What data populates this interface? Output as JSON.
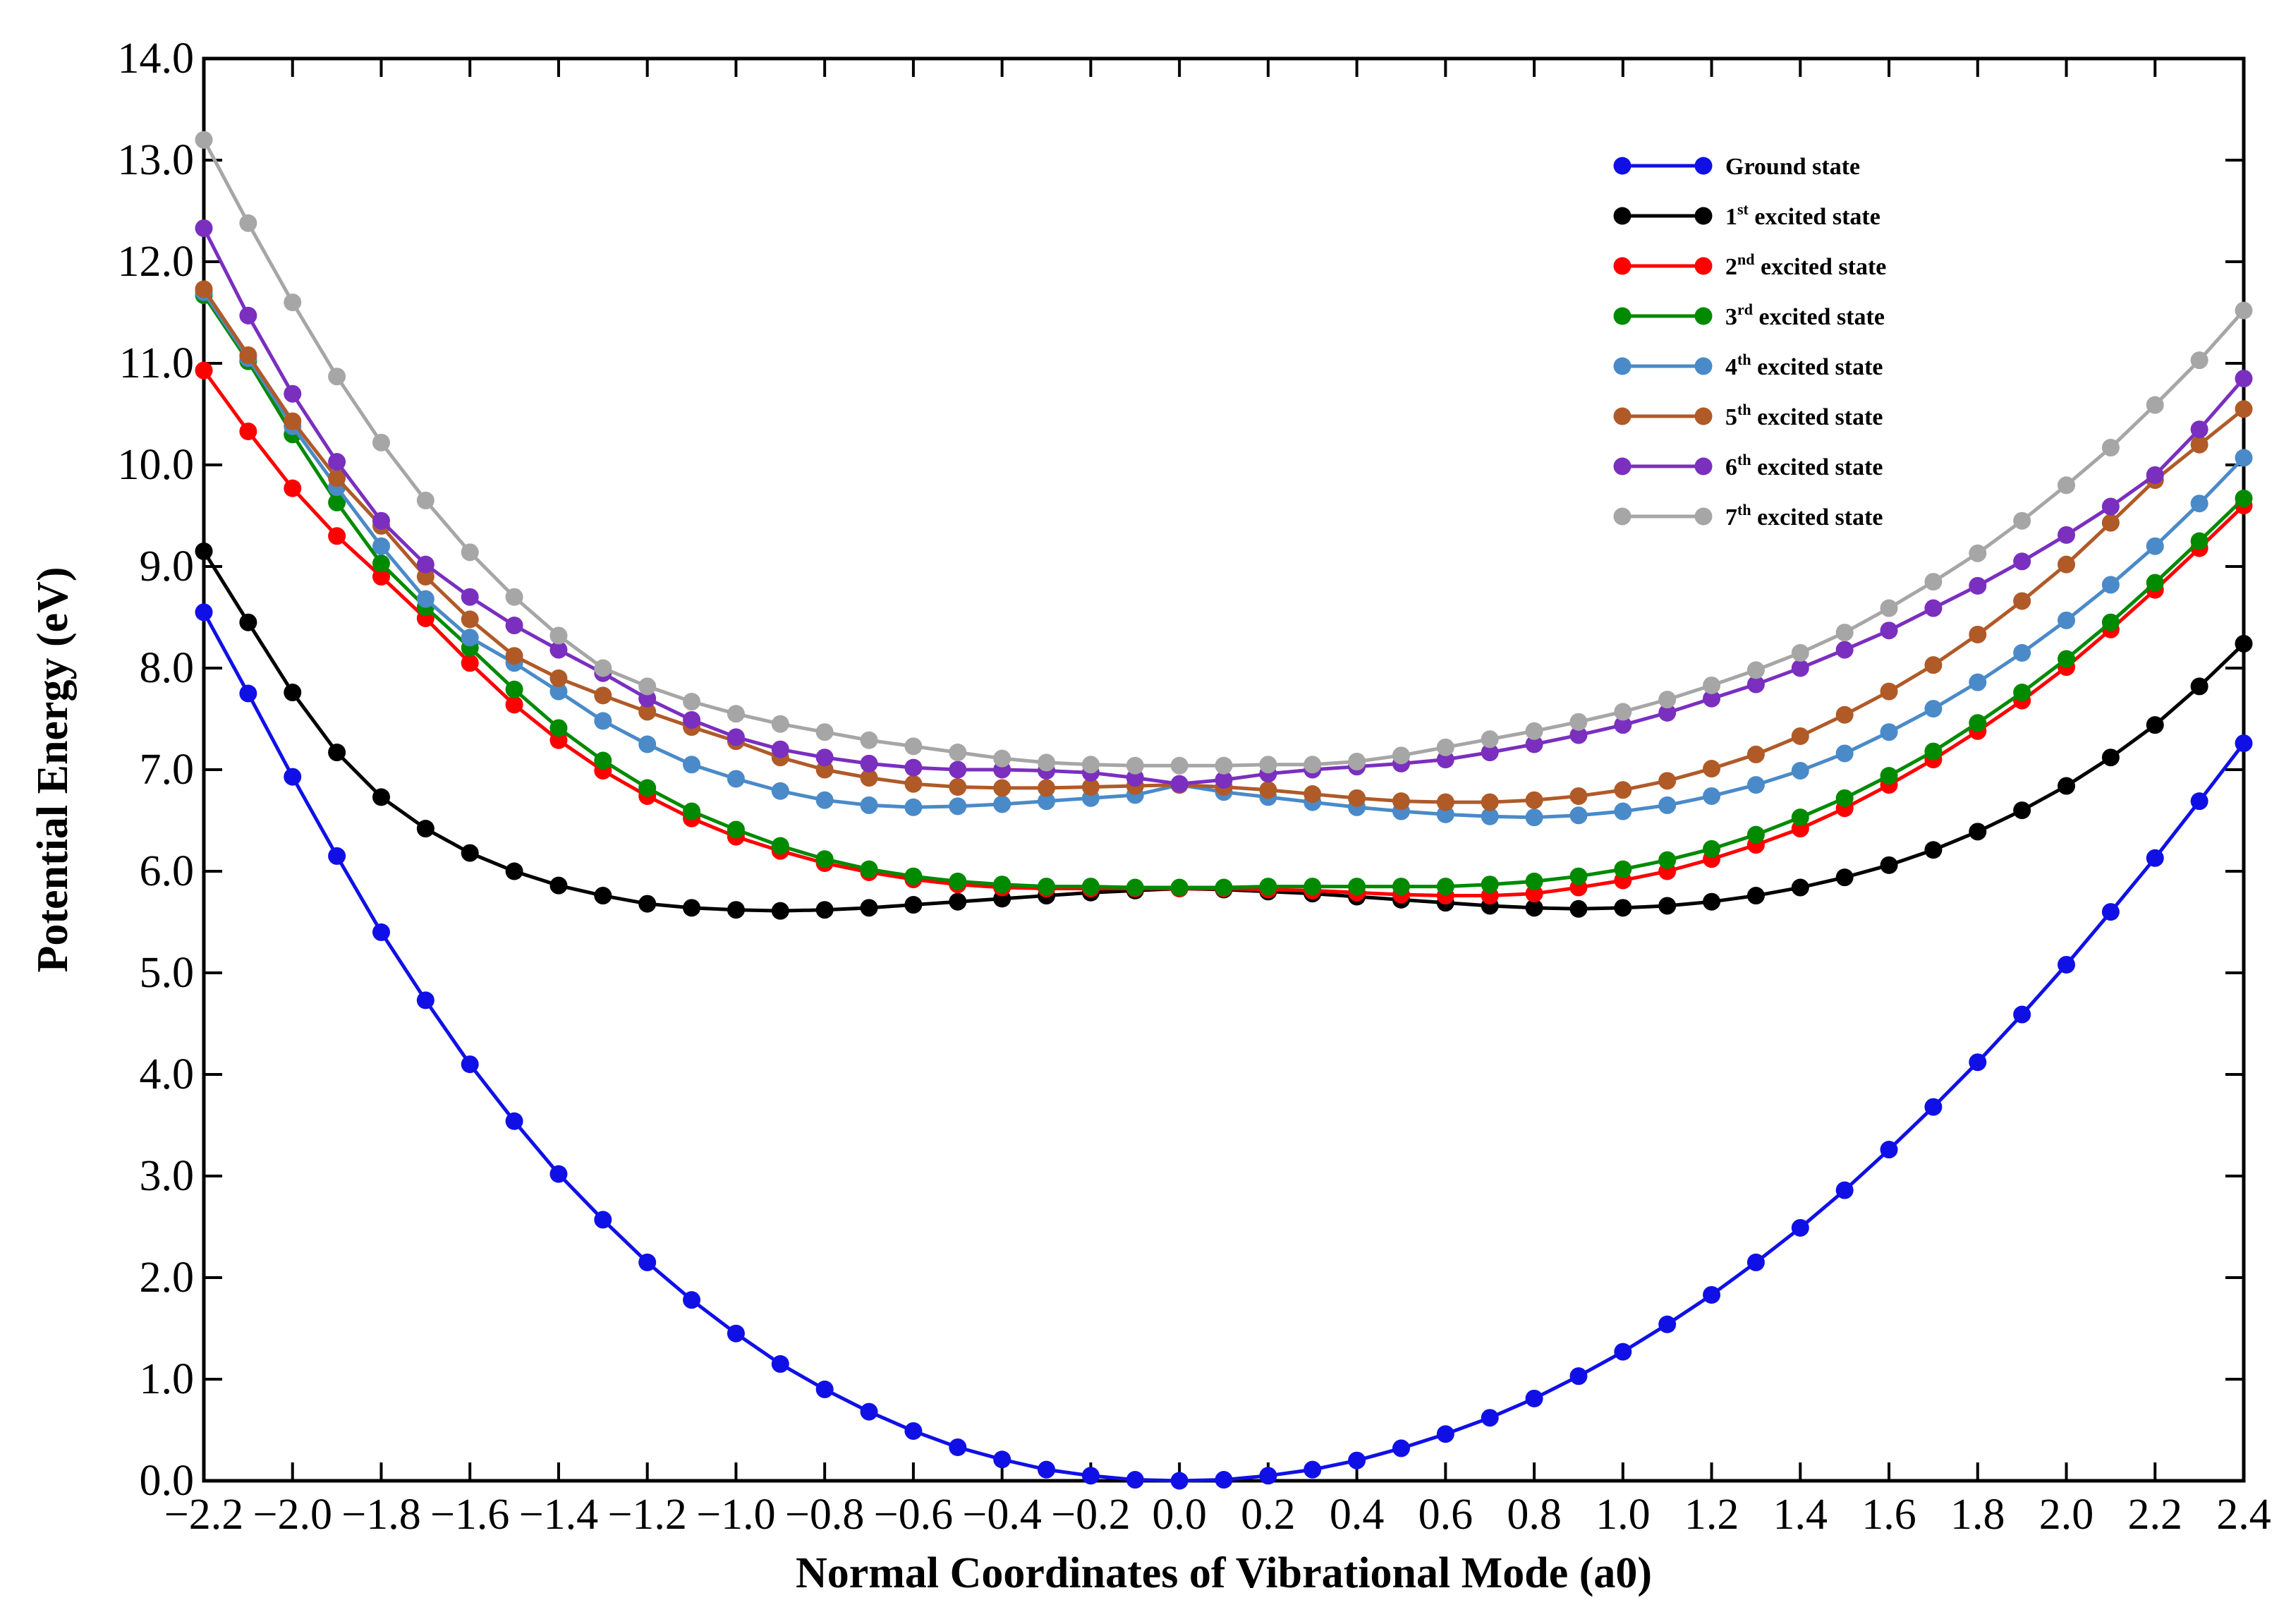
{
  "chart_data": {
    "type": "line",
    "x_label": "Normal Coordinates of Vibrational Mode (a0)",
    "y_label": "Potential Energy (eV)",
    "x": [
      -2.2,
      -2.1,
      -2.0,
      -1.9,
      -1.8,
      -1.7,
      -1.6,
      -1.5,
      -1.4,
      -1.3,
      -1.2,
      -1.1,
      -1.0,
      -0.9,
      -0.8,
      -0.7,
      -0.6,
      -0.5,
      -0.4,
      -0.3,
      -0.2,
      -0.1,
      0,
      0.1,
      0.2,
      0.3,
      0.4,
      0.5,
      0.6,
      0.7,
      0.8,
      0.9,
      1.0,
      1.1,
      1.2,
      1.3,
      1.4,
      1.5,
      1.6,
      1.7,
      1.8,
      1.9,
      2.0,
      2.1,
      2.2,
      2.3,
      2.4
    ],
    "series": [
      {
        "name": "Ground state",
        "color": "#1010e6",
        "values": [
          8.55,
          7.75,
          6.93,
          6.15,
          5.4,
          4.73,
          4.1,
          3.54,
          3.02,
          2.57,
          2.15,
          1.78,
          1.45,
          1.15,
          0.9,
          0.68,
          0.49,
          0.33,
          0.21,
          0.11,
          0.05,
          0.01,
          0.0,
          0.01,
          0.05,
          0.11,
          0.2,
          0.32,
          0.46,
          0.62,
          0.81,
          1.03,
          1.27,
          1.54,
          1.83,
          2.15,
          2.49,
          2.86,
          3.26,
          3.68,
          4.12,
          4.59,
          5.08,
          5.6,
          6.13,
          6.69,
          7.26
        ]
      },
      {
        "name": "1st excited state",
        "color": "#000000",
        "values": [
          9.15,
          8.45,
          7.76,
          7.17,
          6.73,
          6.42,
          6.18,
          6.0,
          5.86,
          5.76,
          5.68,
          5.64,
          5.62,
          5.61,
          5.62,
          5.64,
          5.67,
          5.7,
          5.73,
          5.76,
          5.79,
          5.81,
          5.83,
          5.82,
          5.8,
          5.78,
          5.75,
          5.72,
          5.69,
          5.66,
          5.64,
          5.63,
          5.64,
          5.66,
          5.7,
          5.76,
          5.84,
          5.94,
          6.06,
          6.21,
          6.39,
          6.6,
          6.84,
          7.12,
          7.44,
          7.82,
          8.24
        ]
      },
      {
        "name": "2nd excited state",
        "color": "#ff0000",
        "values": [
          10.93,
          10.33,
          9.77,
          9.3,
          8.9,
          8.49,
          8.05,
          7.64,
          7.29,
          6.99,
          6.74,
          6.52,
          6.34,
          6.2,
          6.08,
          5.99,
          5.92,
          5.87,
          5.84,
          5.83,
          5.83,
          5.83,
          5.83,
          5.83,
          5.82,
          5.81,
          5.79,
          5.77,
          5.76,
          5.76,
          5.78,
          5.84,
          5.91,
          6.0,
          6.12,
          6.26,
          6.42,
          6.62,
          6.85,
          7.1,
          7.38,
          7.68,
          8.01,
          8.38,
          8.77,
          9.18,
          9.6
        ]
      },
      {
        "name": "3rd excited state",
        "color": "#008a00",
        "values": [
          11.67,
          11.02,
          10.3,
          9.63,
          9.03,
          8.6,
          8.2,
          7.79,
          7.41,
          7.09,
          6.82,
          6.59,
          6.41,
          6.25,
          6.12,
          6.02,
          5.95,
          5.9,
          5.87,
          5.85,
          5.85,
          5.84,
          5.84,
          5.84,
          5.85,
          5.85,
          5.85,
          5.85,
          5.85,
          5.87,
          5.9,
          5.95,
          6.02,
          6.11,
          6.22,
          6.36,
          6.53,
          6.72,
          6.94,
          7.18,
          7.46,
          7.76,
          8.09,
          8.45,
          8.84,
          9.25,
          9.67
        ]
      },
      {
        "name": "4th excited state",
        "color": "#4a8ac8",
        "values": [
          11.7,
          11.05,
          10.38,
          9.78,
          9.2,
          8.68,
          8.3,
          8.05,
          7.77,
          7.48,
          7.25,
          7.05,
          6.91,
          6.79,
          6.7,
          6.65,
          6.63,
          6.64,
          6.66,
          6.69,
          6.72,
          6.75,
          6.85,
          6.78,
          6.73,
          6.68,
          6.63,
          6.59,
          6.56,
          6.54,
          6.53,
          6.55,
          6.59,
          6.65,
          6.74,
          6.85,
          6.99,
          7.16,
          7.37,
          7.6,
          7.86,
          8.15,
          8.47,
          8.82,
          9.2,
          9.62,
          10.07
        ]
      },
      {
        "name": "5th excited state",
        "color": "#b05a28",
        "values": [
          11.73,
          11.08,
          10.43,
          9.87,
          9.4,
          8.9,
          8.48,
          8.12,
          7.9,
          7.73,
          7.57,
          7.42,
          7.28,
          7.12,
          7.0,
          6.92,
          6.86,
          6.83,
          6.82,
          6.82,
          6.83,
          6.84,
          6.85,
          6.83,
          6.8,
          6.76,
          6.72,
          6.69,
          6.68,
          6.68,
          6.7,
          6.74,
          6.8,
          6.89,
          7.01,
          7.15,
          7.33,
          7.54,
          7.77,
          8.03,
          8.33,
          8.66,
          9.02,
          9.43,
          9.85,
          10.2,
          10.55
        ]
      },
      {
        "name": "6th excited state",
        "color": "#7a2fbf",
        "values": [
          12.33,
          11.47,
          10.7,
          10.03,
          9.45,
          9.02,
          8.7,
          8.42,
          8.18,
          7.95,
          7.7,
          7.49,
          7.32,
          7.2,
          7.12,
          7.06,
          7.02,
          7.0,
          7.0,
          6.99,
          6.97,
          6.92,
          6.86,
          6.9,
          6.96,
          7.0,
          7.03,
          7.06,
          7.1,
          7.17,
          7.25,
          7.34,
          7.44,
          7.56,
          7.7,
          7.84,
          8.0,
          8.18,
          8.37,
          8.59,
          8.81,
          9.05,
          9.31,
          9.59,
          9.9,
          10.35,
          10.85
        ]
      },
      {
        "name": "7th excited state",
        "color": "#a6a6a6",
        "values": [
          13.2,
          12.38,
          11.6,
          10.87,
          10.22,
          9.65,
          9.14,
          8.7,
          8.32,
          8.0,
          7.82,
          7.67,
          7.55,
          7.45,
          7.37,
          7.29,
          7.23,
          7.17,
          7.11,
          7.07,
          7.05,
          7.04,
          7.04,
          7.04,
          7.05,
          7.05,
          7.08,
          7.14,
          7.22,
          7.3,
          7.38,
          7.47,
          7.57,
          7.69,
          7.83,
          7.98,
          8.15,
          8.35,
          8.59,
          8.85,
          9.13,
          9.45,
          9.8,
          10.17,
          10.59,
          11.03,
          11.52
        ]
      }
    ],
    "xlim": [
      -2.2,
      2.4
    ],
    "ylim": [
      0,
      14
    ],
    "xticks": [
      {
        "value": -2.2,
        "label": "−2.2"
      },
      {
        "value": -2.0,
        "label": "−2.0"
      },
      {
        "value": -1.8,
        "label": "−1.8"
      },
      {
        "value": -1.6,
        "label": "−1.6"
      },
      {
        "value": -1.4,
        "label": "−1.4"
      },
      {
        "value": -1.2,
        "label": "−1.2"
      },
      {
        "value": -1.0,
        "label": "−1.0"
      },
      {
        "value": -0.8,
        "label": "−0.8"
      },
      {
        "value": -0.6,
        "label": "−0.6"
      },
      {
        "value": -0.4,
        "label": "−0.4"
      },
      {
        "value": -0.2,
        "label": "−0.2"
      },
      {
        "value": 0,
        "label": "0.0"
      },
      0.2,
      0.4,
      0.6,
      0.8,
      {
        "value": 1.0,
        "label": "1.0"
      },
      1.2,
      1.4,
      1.6,
      1.8,
      {
        "value": 2.0,
        "label": "2.0"
      },
      2.2,
      2.4
    ],
    "yticks": [
      {
        "value": 0,
        "label": "0.0"
      },
      {
        "value": 1,
        "label": "1.0"
      },
      {
        "value": 2,
        "label": "2.0"
      },
      {
        "value": 3,
        "label": "3.0"
      },
      {
        "value": 4,
        "label": "4.0"
      },
      {
        "value": 5,
        "label": "5.0"
      },
      {
        "value": 6,
        "label": "6.0"
      },
      {
        "value": 7,
        "label": "7.0"
      },
      {
        "value": 8,
        "label": "8.0"
      },
      {
        "value": 9,
        "label": "9.0"
      },
      {
        "value": 10,
        "label": "10.0"
      },
      {
        "value": 11,
        "label": "11.0"
      },
      {
        "value": 12,
        "label": "12.0"
      },
      {
        "value": 13,
        "label": "13.0"
      },
      {
        "value": 14,
        "label": "14.0"
      }
    ],
    "grid": false,
    "legend": "upper right"
  }
}
